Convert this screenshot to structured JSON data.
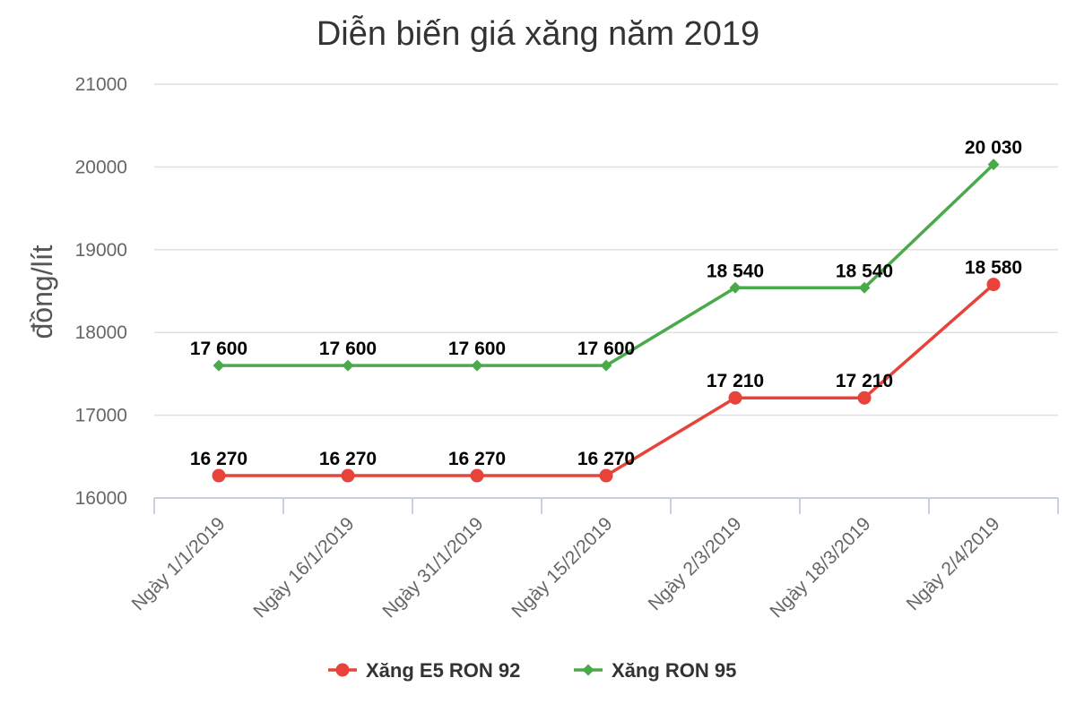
{
  "chart_data": {
    "type": "line",
    "title": "Diễn biến giá xăng năm 2019",
    "xlabel": "",
    "ylabel": "đồng/lít",
    "ylim": [
      16000,
      21000
    ],
    "yticks": [
      "16000",
      "17000",
      "18000",
      "19000",
      "20000",
      "21000"
    ],
    "grid": true,
    "legend_position": "bottom",
    "categories": [
      "Ngày 1/1/2019",
      "Ngày 16/1/2019",
      "Ngày 31/1/2019",
      "Ngày 15/2/2019",
      "Ngày 2/3/2019",
      "Ngày 18/3/2019",
      "Ngày 2/4/2019"
    ],
    "series": [
      {
        "name": "Xăng E5 RON 92",
        "marker": "circle",
        "color": "#e8433a",
        "values": [
          16270,
          16270,
          16270,
          16270,
          17210,
          17210,
          18580
        ],
        "labels": [
          "16 270",
          "16 270",
          "16 270",
          "16 270",
          "17 210",
          "17 210",
          "18 580"
        ]
      },
      {
        "name": "Xăng RON 95",
        "marker": "diamond",
        "color": "#4aaa4a",
        "values": [
          17600,
          17600,
          17600,
          17600,
          18540,
          18540,
          20030
        ],
        "labels": [
          "17 600",
          "17 600",
          "17 600",
          "17 600",
          "18 540",
          "18 540",
          "20 030"
        ]
      }
    ]
  }
}
